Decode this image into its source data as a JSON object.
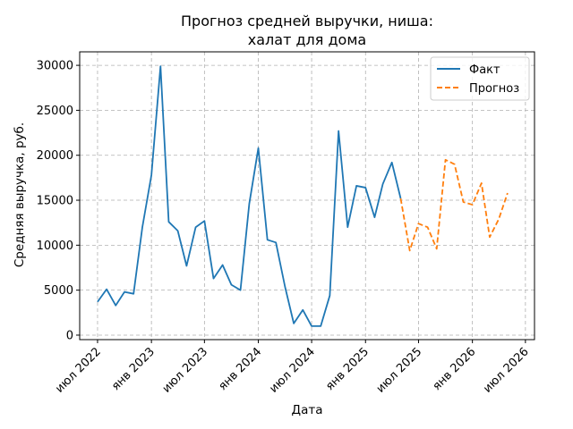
{
  "chart_data": {
    "type": "line",
    "title_lines": [
      "Прогноз средней выручки, ниша:",
      "халат для дома"
    ],
    "xlabel": "Дата",
    "ylabel": "Средняя выручка, руб.",
    "xlim": [
      "2022-05-01",
      "2026-08-01"
    ],
    "ylim": [
      -500,
      31500
    ],
    "x_ticks": [
      {
        "date": "2022-07-01",
        "label": "июл 2022"
      },
      {
        "date": "2023-01-01",
        "label": "янв 2023"
      },
      {
        "date": "2023-07-01",
        "label": "июл 2023"
      },
      {
        "date": "2024-01-01",
        "label": "янв 2024"
      },
      {
        "date": "2024-07-01",
        "label": "июл 2024"
      },
      {
        "date": "2025-01-01",
        "label": "янв 2025"
      },
      {
        "date": "2025-07-01",
        "label": "июл 2025"
      },
      {
        "date": "2026-01-01",
        "label": "янв 2026"
      },
      {
        "date": "2026-07-01",
        "label": "июл 2026"
      }
    ],
    "y_ticks": [
      0,
      5000,
      10000,
      15000,
      20000,
      25000,
      30000
    ],
    "grid": true,
    "legend_position": "top-right",
    "series": [
      {
        "name": "Факт",
        "style": "solid",
        "color": "#1f77b4",
        "points": [
          [
            "2022-07-01",
            3700
          ],
          [
            "2022-08-01",
            5100
          ],
          [
            "2022-09-01",
            3300
          ],
          [
            "2022-10-01",
            4800
          ],
          [
            "2022-11-01",
            4600
          ],
          [
            "2022-12-01",
            12000
          ],
          [
            "2023-01-01",
            17800
          ],
          [
            "2023-02-01",
            29900
          ],
          [
            "2023-03-01",
            12600
          ],
          [
            "2023-04-01",
            11600
          ],
          [
            "2023-05-01",
            7700
          ],
          [
            "2023-06-01",
            12000
          ],
          [
            "2023-07-01",
            12700
          ],
          [
            "2023-08-01",
            6300
          ],
          [
            "2023-09-01",
            7800
          ],
          [
            "2023-10-01",
            5600
          ],
          [
            "2023-11-01",
            5000
          ],
          [
            "2023-12-01",
            14600
          ],
          [
            "2024-01-01",
            20800
          ],
          [
            "2024-02-01",
            10600
          ],
          [
            "2024-03-01",
            10300
          ],
          [
            "2024-04-01",
            5400
          ],
          [
            "2024-05-01",
            1300
          ],
          [
            "2024-06-01",
            2800
          ],
          [
            "2024-07-01",
            1000
          ],
          [
            "2024-08-01",
            1000
          ],
          [
            "2024-09-01",
            4400
          ],
          [
            "2024-10-01",
            22700
          ],
          [
            "2024-11-01",
            12000
          ],
          [
            "2024-12-01",
            16600
          ],
          [
            "2025-01-01",
            16400
          ],
          [
            "2025-02-01",
            13100
          ],
          [
            "2025-03-01",
            16800
          ],
          [
            "2025-04-01",
            19200
          ],
          [
            "2025-05-01",
            15200
          ]
        ]
      },
      {
        "name": "Прогноз",
        "style": "dashed",
        "color": "#ff7f0e",
        "points": [
          [
            "2025-05-01",
            15200
          ],
          [
            "2025-06-01",
            9400
          ],
          [
            "2025-07-01",
            12400
          ],
          [
            "2025-08-01",
            12000
          ],
          [
            "2025-09-01",
            9600
          ],
          [
            "2025-10-01",
            19500
          ],
          [
            "2025-11-01",
            19000
          ],
          [
            "2025-12-01",
            14800
          ],
          [
            "2026-01-01",
            14500
          ],
          [
            "2026-02-01",
            16900
          ],
          [
            "2026-03-01",
            10900
          ],
          [
            "2026-04-01",
            12900
          ],
          [
            "2026-05-01",
            15800
          ]
        ]
      }
    ]
  }
}
